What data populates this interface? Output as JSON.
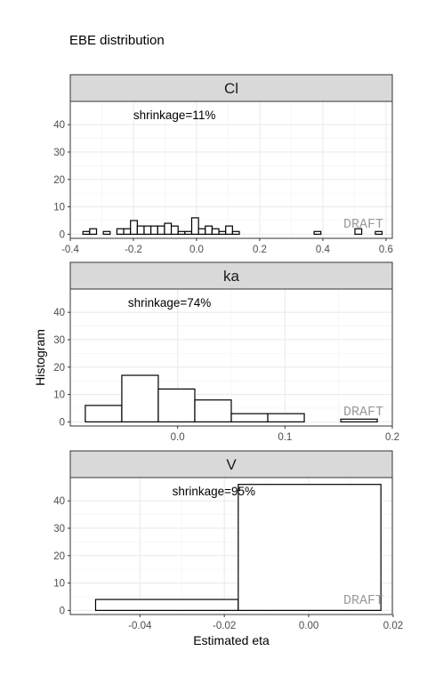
{
  "chart_data": {
    "type": "histogram",
    "title": "EBE distribution",
    "xlabel": "Estimated eta",
    "ylabel": "Histogram",
    "y_ticks": [
      0,
      10,
      20,
      30,
      40
    ],
    "ylim": [
      -1.5,
      48.5
    ],
    "grid": true,
    "watermark": "DRAFT",
    "bar_fill": "#ffffff",
    "bar_stroke": "#000000",
    "panels": [
      {
        "name": "Cl",
        "annotation": "shrinkage=11%",
        "annotation_x": -0.07,
        "xlim": [
          -0.4,
          0.62
        ],
        "x_ticks": [
          -0.4,
          -0.2,
          0.0,
          0.2,
          0.4,
          0.6
        ],
        "x_tick_labels": [
          "-0.4",
          "-0.2",
          "0.0",
          "0.2",
          "0.4",
          "0.6"
        ],
        "bins": [
          {
            "x0": -0.36,
            "x1": -0.3385,
            "count": 1
          },
          {
            "x0": -0.3385,
            "x1": -0.3169,
            "count": 2
          },
          {
            "x0": -0.3169,
            "x1": -0.2954,
            "count": 0
          },
          {
            "x0": -0.2954,
            "x1": -0.2738,
            "count": 1
          },
          {
            "x0": -0.2738,
            "x1": -0.2523,
            "count": 0
          },
          {
            "x0": -0.2523,
            "x1": -0.2308,
            "count": 2
          },
          {
            "x0": -0.2308,
            "x1": -0.2092,
            "count": 2
          },
          {
            "x0": -0.2092,
            "x1": -0.1877,
            "count": 5
          },
          {
            "x0": -0.1877,
            "x1": -0.1662,
            "count": 3
          },
          {
            "x0": -0.1662,
            "x1": -0.1446,
            "count": 3
          },
          {
            "x0": -0.1446,
            "x1": -0.1231,
            "count": 3
          },
          {
            "x0": -0.1231,
            "x1": -0.1015,
            "count": 3
          },
          {
            "x0": -0.1015,
            "x1": -0.08,
            "count": 4
          },
          {
            "x0": -0.08,
            "x1": -0.0585,
            "count": 3
          },
          {
            "x0": -0.0585,
            "x1": -0.0369,
            "count": 1
          },
          {
            "x0": -0.0369,
            "x1": -0.0154,
            "count": 1
          },
          {
            "x0": -0.0154,
            "x1": 0.0062,
            "count": 6
          },
          {
            "x0": 0.0062,
            "x1": 0.0277,
            "count": 2
          },
          {
            "x0": 0.0277,
            "x1": 0.0492,
            "count": 3
          },
          {
            "x0": 0.0492,
            "x1": 0.0708,
            "count": 2
          },
          {
            "x0": 0.0708,
            "x1": 0.0923,
            "count": 1
          },
          {
            "x0": 0.0923,
            "x1": 0.1138,
            "count": 3
          },
          {
            "x0": 0.1138,
            "x1": 0.1354,
            "count": 1
          },
          {
            "x0": 0.1354,
            "x1": 0.1569,
            "count": 0
          },
          {
            "x0": 0.1569,
            "x1": 0.1785,
            "count": 0
          },
          {
            "x0": 0.1785,
            "x1": 0.2,
            "count": 0
          },
          {
            "x0": 0.2,
            "x1": 0.2215,
            "count": 0
          },
          {
            "x0": 0.2215,
            "x1": 0.2431,
            "count": 0
          },
          {
            "x0": 0.2431,
            "x1": 0.2646,
            "count": 0
          },
          {
            "x0": 0.2646,
            "x1": 0.2862,
            "count": 0
          },
          {
            "x0": 0.2862,
            "x1": 0.3077,
            "count": 0
          },
          {
            "x0": 0.3077,
            "x1": 0.3292,
            "count": 0
          },
          {
            "x0": 0.3292,
            "x1": 0.3508,
            "count": 0
          },
          {
            "x0": 0.3508,
            "x1": 0.3723,
            "count": 0
          },
          {
            "x0": 0.3723,
            "x1": 0.3938,
            "count": 1
          },
          {
            "x0": 0.3938,
            "x1": 0.4154,
            "count": 0
          },
          {
            "x0": 0.4154,
            "x1": 0.4369,
            "count": 0
          },
          {
            "x0": 0.4369,
            "x1": 0.4585,
            "count": 0
          },
          {
            "x0": 0.4585,
            "x1": 0.48,
            "count": 0
          },
          {
            "x0": 0.48,
            "x1": 0.5015,
            "count": 0
          },
          {
            "x0": 0.5015,
            "x1": 0.5231,
            "count": 2
          },
          {
            "x0": 0.5231,
            "x1": 0.5446,
            "count": 0
          },
          {
            "x0": 0.5446,
            "x1": 0.5662,
            "count": 0
          },
          {
            "x0": 0.5662,
            "x1": 0.5877,
            "count": 1
          }
        ]
      },
      {
        "name": "ka",
        "annotation": "shrinkage=74%",
        "annotation_x": -0.0075,
        "xlim": [
          -0.1,
          0.2
        ],
        "x_ticks": [
          0.0,
          0.1,
          0.2
        ],
        "x_tick_labels": [
          "0.0",
          "0.1",
          "0.2"
        ],
        "bins": [
          {
            "x0": -0.086,
            "x1": -0.052,
            "count": 6
          },
          {
            "x0": -0.052,
            "x1": -0.018,
            "count": 17
          },
          {
            "x0": -0.018,
            "x1": 0.016,
            "count": 12
          },
          {
            "x0": 0.016,
            "x1": 0.05,
            "count": 8
          },
          {
            "x0": 0.05,
            "x1": 0.084,
            "count": 3
          },
          {
            "x0": 0.084,
            "x1": 0.118,
            "count": 3
          },
          {
            "x0": 0.118,
            "x1": 0.152,
            "count": 0
          },
          {
            "x0": 0.152,
            "x1": 0.186,
            "count": 1
          }
        ]
      },
      {
        "name": "V",
        "annotation": "shrinkage=95%",
        "annotation_x": -0.0225,
        "xlim": [
          -0.0565,
          0.0198
        ],
        "x_ticks": [
          -0.04,
          -0.02,
          0.0,
          0.02
        ],
        "x_tick_labels": [
          "-0.04",
          "-0.02",
          "0.00",
          "0.02"
        ],
        "bins": [
          {
            "x0": -0.0505,
            "x1": -0.0167,
            "count": 4
          },
          {
            "x0": -0.0167,
            "x1": 0.0171,
            "count": 46
          }
        ]
      }
    ]
  }
}
